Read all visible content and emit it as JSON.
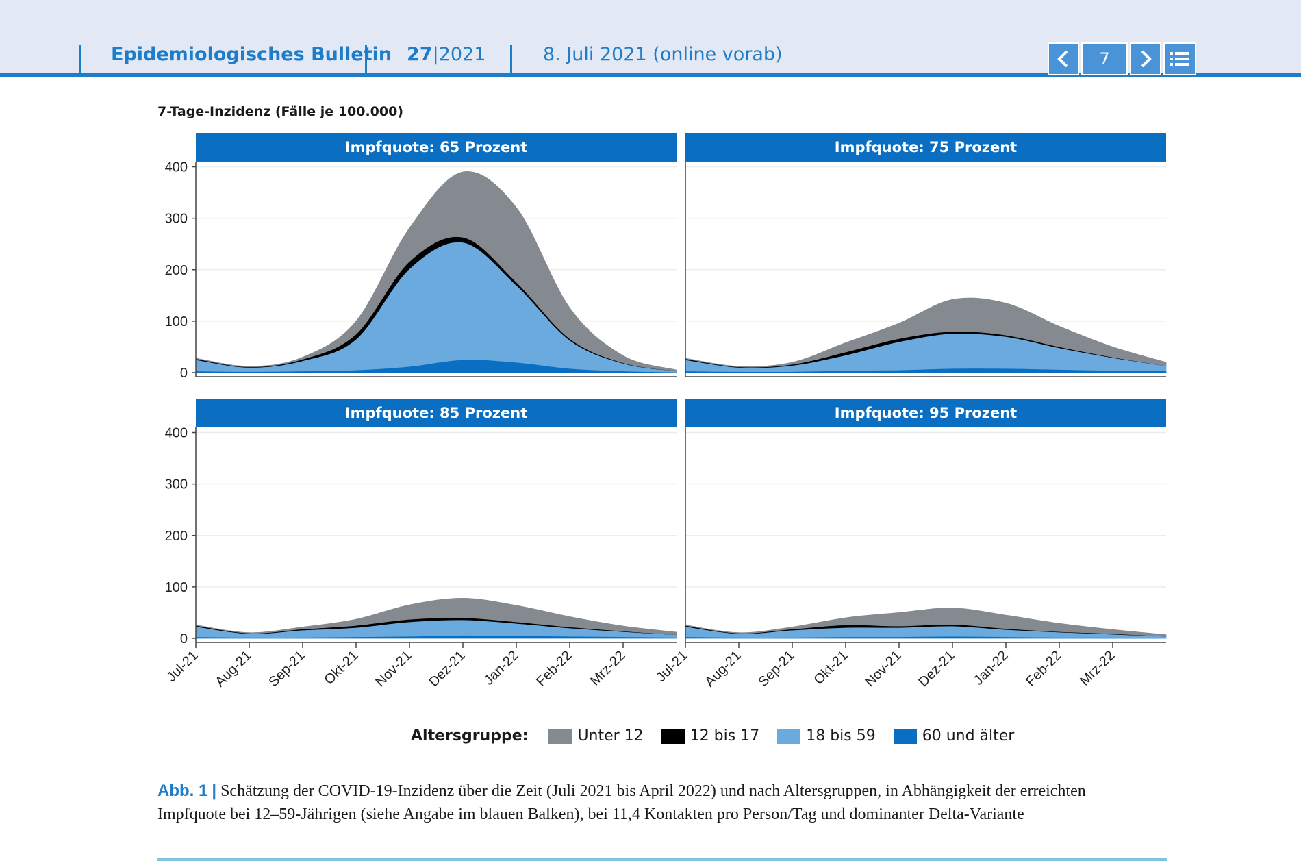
{
  "header": {
    "publication": "Epidemiologisches Bulletin",
    "issue_bold": "27",
    "issue_sep": "|",
    "issue_year": "2021",
    "date": "8. Juli 2021 (online vorab)",
    "page": "7",
    "prev_icon": "chevron-left-icon",
    "next_icon": "chevron-right-icon",
    "toc_icon": "list-icon",
    "accent": "#1f7cc8",
    "bg": "#e3e9f4"
  },
  "figure": {
    "ylabel": "7-Tage-Inzidenz (Fälle je 100.000)",
    "legend_title": "Altersgruppe:",
    "legend": [
      {
        "label": "Unter 12",
        "color": "#858a90"
      },
      {
        "label": "12 bis 17",
        "color": "#000000"
      },
      {
        "label": "18 bis 59",
        "color": "#6aaade"
      },
      {
        "label": "60 und älter",
        "color": "#0a6fc2"
      }
    ],
    "caption_label": "Abb. 1",
    "caption_bar": "|",
    "caption_text": "Schätzung der COVID-19-Inzidenz über die Zeit (Juli 2021 bis April 2022) und nach Altersgruppen, in Abhängigkeit der erreichten Impfquote bei 12–59-Jährigen (siehe Angabe im blauen Balken), bei 11,4 Kontakten pro Person/Tag und dominanter Delta-Variante"
  },
  "chart_data": {
    "type": "area",
    "stacked": true,
    "x": [
      "Jul-21",
      "Aug-21",
      "Sep-21",
      "Okt-21",
      "Nov-21",
      "Dez-21",
      "Jan-22",
      "Feb-22",
      "Mrz-22",
      "Apr-22"
    ],
    "xticks": [
      "Jul-21",
      "Aug-21",
      "Sep-21",
      "Okt-21",
      "Nov-21",
      "Dez-21",
      "Jan-22",
      "Feb-22",
      "Mrz-22"
    ],
    "yticks": [
      0,
      100,
      200,
      300,
      400
    ],
    "ylim": [
      0,
      410
    ],
    "grid": true,
    "legend_position": "bottom",
    "panels": [
      {
        "title": "Impfquote: 65 Prozent",
        "series": [
          {
            "name": "60 und älter",
            "values": [
              3,
              2,
              3,
              5,
              12,
              25,
              20,
              8,
              3,
              1
            ]
          },
          {
            "name": "18 bis 59",
            "values": [
              22,
              8,
              20,
              60,
              190,
              228,
              150,
              55,
              15,
              2
            ]
          },
          {
            "name": "12 bis 17",
            "values": [
              2,
              1,
              3,
              10,
              14,
              10,
              6,
              3,
              1,
              0
            ]
          },
          {
            "name": "Unter 12",
            "values": [
              1,
              1,
              4,
              25,
              65,
              127,
              145,
              60,
              14,
              2
            ]
          }
        ]
      },
      {
        "title": "Impfquote: 75 Prozent",
        "series": [
          {
            "name": "60 und älter",
            "values": [
              3,
              2,
              2,
              4,
              5,
              8,
              8,
              6,
              4,
              3
            ]
          },
          {
            "name": "18 bis 59",
            "values": [
              22,
              8,
              12,
              30,
              55,
              68,
              62,
              42,
              25,
              10
            ]
          },
          {
            "name": "12 bis 17",
            "values": [
              2,
              1,
              2,
              6,
              6,
              4,
              3,
              2,
              1,
              0
            ]
          },
          {
            "name": "Unter 12",
            "values": [
              1,
              1,
              4,
              18,
              30,
              62,
              62,
              40,
              20,
              7
            ]
          }
        ]
      },
      {
        "title": "Impfquote: 85 Prozent",
        "series": [
          {
            "name": "60 und älter",
            "values": [
              3,
              2,
              2,
              3,
              4,
              6,
              5,
              4,
              3,
              2
            ]
          },
          {
            "name": "18 bis 59",
            "values": [
              20,
              7,
              14,
              18,
              28,
              30,
              24,
              16,
              10,
              5
            ]
          },
          {
            "name": "12 bis 17",
            "values": [
              2,
              1,
              2,
              4,
              5,
              4,
              3,
              2,
              1,
              0
            ]
          },
          {
            "name": "Unter 12",
            "values": [
              1,
              1,
              4,
              12,
              28,
              38,
              32,
              20,
              10,
              5
            ]
          }
        ]
      },
      {
        "title": "Impfquote: 95 Prozent",
        "series": [
          {
            "name": "60 und älter",
            "values": [
              3,
              2,
              2,
              3,
              3,
              4,
              3,
              2,
              2,
              1
            ]
          },
          {
            "name": "18 bis 59",
            "values": [
              20,
              7,
              14,
              18,
              18,
              20,
              14,
              10,
              6,
              3
            ]
          },
          {
            "name": "12 bis 17",
            "values": [
              2,
              1,
              2,
              5,
              3,
              3,
              2,
              1,
              1,
              0
            ]
          },
          {
            "name": "Unter 12",
            "values": [
              1,
              1,
              4,
              14,
              26,
              32,
              26,
              16,
              8,
              3
            ]
          }
        ]
      }
    ]
  }
}
